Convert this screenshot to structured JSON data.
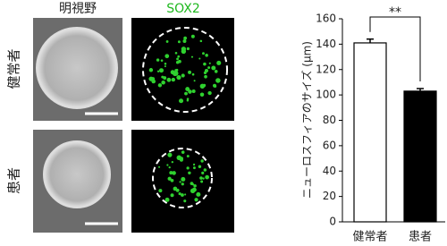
{
  "panels": {
    "columns": [
      "明視野",
      "SOX2"
    ],
    "rows": [
      "健常者",
      "患者"
    ]
  },
  "chart_data": {
    "type": "bar",
    "y_label": "ニューロスフィアのサイズ (μm)",
    "categories": [
      "健常者",
      "患者"
    ],
    "values": [
      141,
      103
    ],
    "errors": [
      3,
      2
    ],
    "colors": [
      "#ffffff",
      "#000000"
    ],
    "significance": "**",
    "ylim": [
      0,
      160
    ],
    "yticks": [
      0,
      20,
      40,
      60,
      80,
      100,
      120,
      140,
      160
    ],
    "grid": false
  }
}
